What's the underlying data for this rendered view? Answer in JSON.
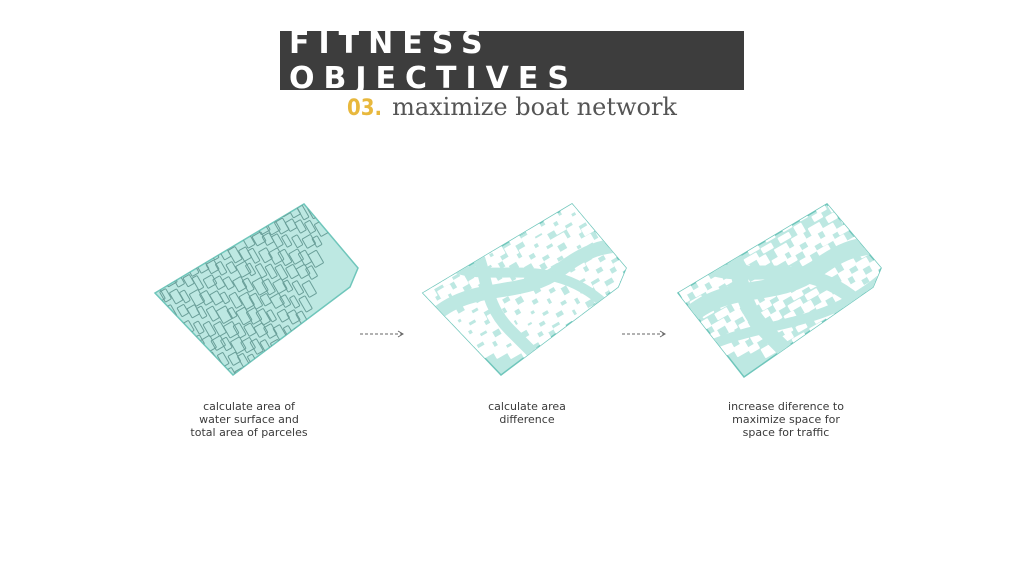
{
  "header": {
    "title": "FITNESS OBJECTIVES",
    "number": "03.",
    "subtitle": "maximize boat network"
  },
  "colors": {
    "title_bar": "#3d3d3d",
    "accent": "#e8b83d",
    "water_fill": "#bde8e2",
    "water_stroke": "#6fc6bb",
    "block_fill": "#ffffff"
  },
  "steps": [
    {
      "lines": [
        "calculate area of",
        "water surface and",
        "total area of parceles"
      ]
    },
    {
      "lines": [
        "calculate area",
        "difference"
      ]
    },
    {
      "lines": [
        "increase diference to",
        "maximize space for",
        "space for traffic"
      ]
    }
  ],
  "icons": {
    "arrow": "dashed-right-arrow-icon",
    "map": "city-block-map-icon"
  }
}
